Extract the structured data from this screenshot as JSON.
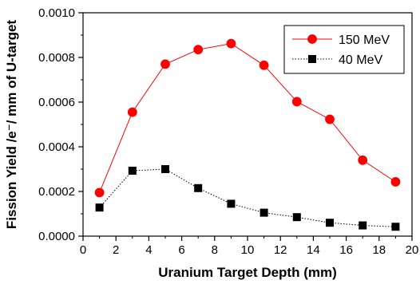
{
  "chart_data": {
    "type": "line",
    "title": "",
    "xlabel": "Uranium Target Depth (mm)",
    "ylabel": "Fission Yield /e⁻/ mm of U-target",
    "xlim": [
      0,
      20
    ],
    "ylim": [
      0,
      0.001
    ],
    "x_ticks": [
      "0",
      "2",
      "4",
      "6",
      "8",
      "10",
      "12",
      "14",
      "16",
      "18",
      "20"
    ],
    "y_ticks": [
      "0.0000",
      "0.0002",
      "0.0004",
      "0.0006",
      "0.0008",
      "0.0010"
    ],
    "grid": false,
    "legend_position": "top-right",
    "series": [
      {
        "name": "150 MeV",
        "color": "#ff0000",
        "marker": "circle",
        "line_style": "solid",
        "x": [
          1,
          3,
          5,
          7,
          9,
          11,
          13,
          15,
          17,
          19
        ],
        "values": [
          0.000195,
          0.000555,
          0.00077,
          0.000835,
          0.000862,
          0.000765,
          0.000602,
          0.000523,
          0.00034,
          0.000243
        ]
      },
      {
        "name": "40 MeV",
        "color": "#000000",
        "marker": "square",
        "line_style": "dotted",
        "x": [
          1,
          3,
          5,
          7,
          9,
          11,
          13,
          15,
          17,
          19
        ],
        "values": [
          0.000128,
          0.000293,
          0.0003,
          0.000215,
          0.000145,
          0.000105,
          8.5e-05,
          6e-05,
          4.8e-05,
          4.2e-05
        ]
      }
    ]
  }
}
